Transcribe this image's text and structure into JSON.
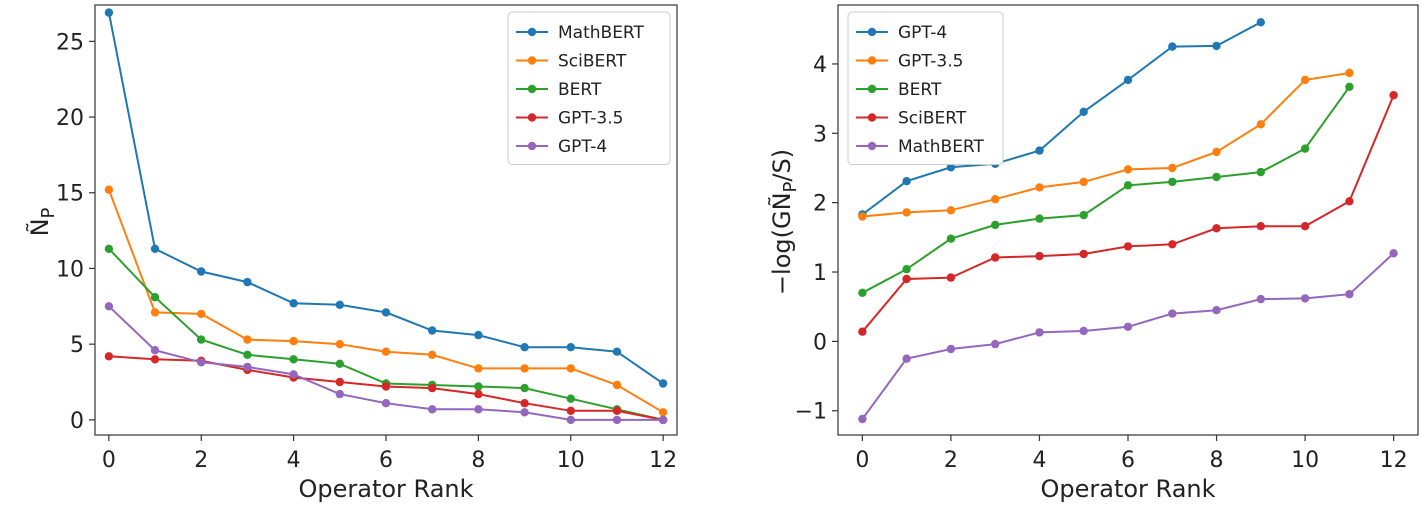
{
  "chart_data": [
    {
      "type": "line",
      "title": "",
      "xlabel": "Operator Rank",
      "ylabel": "Ñ",
      "ylabel_sub": "P",
      "xlim": [
        -0.3,
        12.3
      ],
      "ylim": [
        -1.0,
        27.4
      ],
      "xticks": [
        0,
        2,
        4,
        6,
        8,
        10,
        12
      ],
      "yticks": [
        0,
        5,
        10,
        15,
        20,
        25
      ],
      "legend_position": "top-right",
      "series": [
        {
          "name": "MathBERT",
          "color": "#1f77b4",
          "x": [
            0,
            1,
            2,
            3,
            4,
            5,
            6,
            7,
            8,
            9,
            10,
            11,
            12
          ],
          "values": [
            26.9,
            11.3,
            9.8,
            9.1,
            7.7,
            7.6,
            7.1,
            5.9,
            5.6,
            4.8,
            4.8,
            4.5,
            2.4
          ]
        },
        {
          "name": "SciBERT",
          "color": "#ff7f0e",
          "x": [
            0,
            1,
            2,
            3,
            4,
            5,
            6,
            7,
            8,
            9,
            10,
            11,
            12
          ],
          "values": [
            15.2,
            7.1,
            7.0,
            5.3,
            5.2,
            5.0,
            4.5,
            4.3,
            3.4,
            3.4,
            3.4,
            2.3,
            0.5
          ]
        },
        {
          "name": "BERT",
          "color": "#2ca02c",
          "x": [
            0,
            1,
            2,
            3,
            4,
            5,
            6,
            7,
            8,
            9,
            10,
            11,
            12
          ],
          "values": [
            11.3,
            8.1,
            5.3,
            4.3,
            4.0,
            3.7,
            2.4,
            2.3,
            2.2,
            2.1,
            1.4,
            0.7,
            0.0
          ]
        },
        {
          "name": "GPT-3.5",
          "color": "#d62728",
          "x": [
            0,
            1,
            2,
            3,
            4,
            5,
            6,
            7,
            8,
            9,
            10,
            11,
            12
          ],
          "values": [
            4.2,
            4.0,
            3.9,
            3.3,
            2.8,
            2.5,
            2.2,
            2.1,
            1.7,
            1.1,
            0.6,
            0.6,
            0.0
          ]
        },
        {
          "name": "GPT-4",
          "color": "#9467bd",
          "x": [
            0,
            1,
            2,
            3,
            4,
            5,
            6,
            7,
            8,
            9,
            10,
            11,
            12
          ],
          "values": [
            7.5,
            4.6,
            3.8,
            3.5,
            3.0,
            1.7,
            1.1,
            0.7,
            0.7,
            0.5,
            0.0,
            0.0,
            0.0
          ]
        }
      ]
    },
    {
      "type": "line",
      "title": "",
      "xlabel": "Operator Rank",
      "ylabel": "−log(GÑ",
      "ylabel_sub": "P",
      "ylabel_end": "/S)",
      "xlim": [
        -0.55,
        12.55
      ],
      "ylim": [
        -1.35,
        4.85
      ],
      "xticks": [
        0,
        2,
        4,
        6,
        8,
        10,
        12
      ],
      "yticks": [
        -1,
        0,
        1,
        2,
        3,
        4
      ],
      "legend_position": "top-left",
      "series": [
        {
          "name": "GPT-4",
          "color": "#1f77b4",
          "x": [
            0,
            1,
            2,
            3,
            4,
            5,
            6,
            7,
            8,
            9
          ],
          "values": [
            1.83,
            2.31,
            2.51,
            2.56,
            2.75,
            3.31,
            3.77,
            4.25,
            4.26,
            4.6
          ]
        },
        {
          "name": "GPT-3.5",
          "color": "#ff7f0e",
          "x": [
            0,
            1,
            2,
            3,
            4,
            5,
            6,
            7,
            8,
            9,
            10,
            11
          ],
          "values": [
            1.8,
            1.86,
            1.89,
            2.05,
            2.22,
            2.3,
            2.48,
            2.5,
            2.73,
            3.13,
            3.77,
            3.87
          ]
        },
        {
          "name": "BERT",
          "color": "#2ca02c",
          "x": [
            0,
            1,
            2,
            3,
            4,
            5,
            6,
            7,
            8,
            9,
            10,
            11
          ],
          "values": [
            0.7,
            1.04,
            1.48,
            1.68,
            1.77,
            1.82,
            2.25,
            2.3,
            2.37,
            2.44,
            2.78,
            3.67
          ]
        },
        {
          "name": "SciBERT",
          "color": "#d62728",
          "x": [
            0,
            1,
            2,
            3,
            4,
            5,
            6,
            7,
            8,
            9,
            10,
            11,
            12
          ],
          "values": [
            0.14,
            0.9,
            0.92,
            1.21,
            1.23,
            1.26,
            1.37,
            1.4,
            1.63,
            1.66,
            1.66,
            2.02,
            3.55
          ]
        },
        {
          "name": "MathBERT",
          "color": "#9467bd",
          "x": [
            0,
            1,
            2,
            3,
            4,
            5,
            6,
            7,
            8,
            9,
            10,
            11,
            12
          ],
          "values": [
            -1.12,
            -0.25,
            -0.11,
            -0.04,
            0.13,
            0.15,
            0.21,
            0.4,
            0.45,
            0.61,
            0.62,
            0.68,
            1.27
          ]
        }
      ]
    }
  ]
}
